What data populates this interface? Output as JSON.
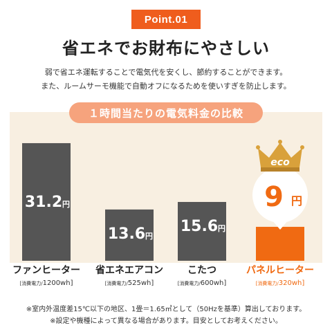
{
  "badge": "Point.01",
  "headline": "省エネでお財布にやさしい",
  "description": [
    "弱で省エネ運転することで電気代を安くし、節約することができます。",
    "また、ルームサーモ機能で自動オフになるためを使いすぎを防止します。"
  ],
  "notes": [
    "※室内外温度差15℃以下の地区、1畳＝1.65㎡として（50Hzを基準）算出しております。",
    "※設定や機種によって異なる場合があります。目安としてお考えください。"
  ],
  "colors": {
    "accent": "#ef5d1d",
    "bar": "#555555",
    "highlight": "#f06a12",
    "panel": "#f8efe1",
    "title_pill": "#f6a37d",
    "crown": "#d9a13b"
  },
  "icons": {
    "crown": "crown-icon",
    "eco_text": "eco"
  },
  "chart_data": {
    "type": "bar",
    "title": "１時間当たりの電気料金の比較",
    "unit": "円",
    "categories": [
      "ファンヒーター",
      "省エネエアコン",
      "こたつ",
      "パネルヒーター"
    ],
    "values": [
      31.2,
      13.6,
      15.6,
      9
    ],
    "value_labels": [
      "31.2",
      "13.6",
      "15.6",
      "9"
    ],
    "power_prefix": "消費電力",
    "power": [
      "1200wh",
      "525wh",
      "600wh",
      "320wh"
    ],
    "highlight_index": 3
  }
}
